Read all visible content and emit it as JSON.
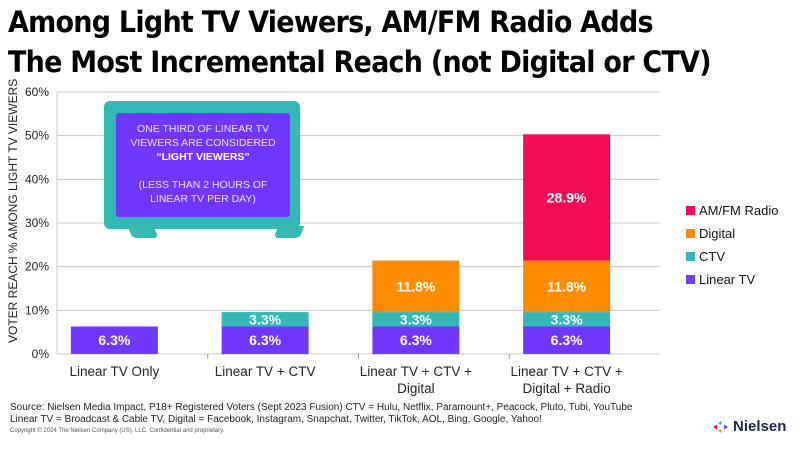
{
  "title_line1": "Among Light TV Viewers, AM/FM Radio Adds",
  "title_line2": "The Most Incremental Reach (not Digital or CTV)",
  "callout": {
    "line1": "ONE THIRD OF LINEAR TV",
    "line2": "VIEWERS ARE CONSIDERED",
    "line3": "“LIGHT VIEWERS”",
    "line4": "(LESS THAN 2 HOURS OF",
    "line5": "LINEAR TV PER DAY)"
  },
  "colors": {
    "linear_tv": "#7037ff",
    "ctv": "#34b8b5",
    "digital": "#ff8c00",
    "radio": "#f50c56",
    "grid": "#c8c8c8"
  },
  "footer": {
    "source_line1": "Source: Nielsen Media Impact, P18+ Registered Voters (Sept 2023 Fusion) CTV = Hulu, Netflix, Paramount+, Peacock, Pluto, Tubi, YouTube",
    "source_line2": "Linear TV = Broadcast & Cable TV, Digital = Facebook, Instagram, Snapchat, Twitter, TikTok, AOL, Bing, Google, Yahoo!",
    "copyright": "Copyright © 2024 The Nielsen Company (US), LLC. Confidential and proprietary."
  },
  "logo": {
    "name": "Nielsen",
    "icon": "nielsen-logo-icon"
  },
  "chart_data": {
    "type": "bar",
    "stacked": true,
    "title": "Among Light TV Viewers, AM/FM Radio Adds The Most Incremental Reach (not Digital or CTV)",
    "xlabel": "",
    "ylabel": "VOTER REACH % AMONG LIGHT TV VIEWERS",
    "ylim": [
      0,
      60
    ],
    "yticks": [
      "0%",
      "10%",
      "20%",
      "30%",
      "40%",
      "50%",
      "60%"
    ],
    "ytick_values": [
      0,
      10,
      20,
      30,
      40,
      50,
      60
    ],
    "grid": true,
    "legend_position": "right",
    "categories": [
      [
        "Linear TV Only"
      ],
      [
        "Linear TV + CTV"
      ],
      [
        "Linear TV + CTV +",
        "Digital"
      ],
      [
        "Linear TV + CTV +",
        "Digital + Radio"
      ]
    ],
    "series": [
      {
        "name": "Linear TV",
        "color": "#7037ff",
        "values": [
          6.3,
          6.3,
          6.3,
          6.3
        ],
        "labels": [
          "6.3%",
          "6.3%",
          "6.3%",
          "6.3%"
        ]
      },
      {
        "name": "CTV",
        "color": "#34b8b5",
        "values": [
          0,
          3.3,
          3.3,
          3.3
        ],
        "labels": [
          "",
          "3.3%",
          "3.3%",
          "3.3%"
        ]
      },
      {
        "name": "Digital",
        "color": "#ff8c00",
        "values": [
          0,
          0,
          11.8,
          11.8
        ],
        "labels": [
          "",
          "",
          "11.8%",
          "11.8%"
        ]
      },
      {
        "name": "AM/FM Radio",
        "color": "#f50c56",
        "values": [
          0,
          0,
          0,
          28.9
        ],
        "labels": [
          "",
          "",
          "",
          "28.9%"
        ]
      }
    ],
    "legend": [
      "AM/FM Radio",
      "Digital",
      "CTV",
      "Linear TV"
    ]
  }
}
